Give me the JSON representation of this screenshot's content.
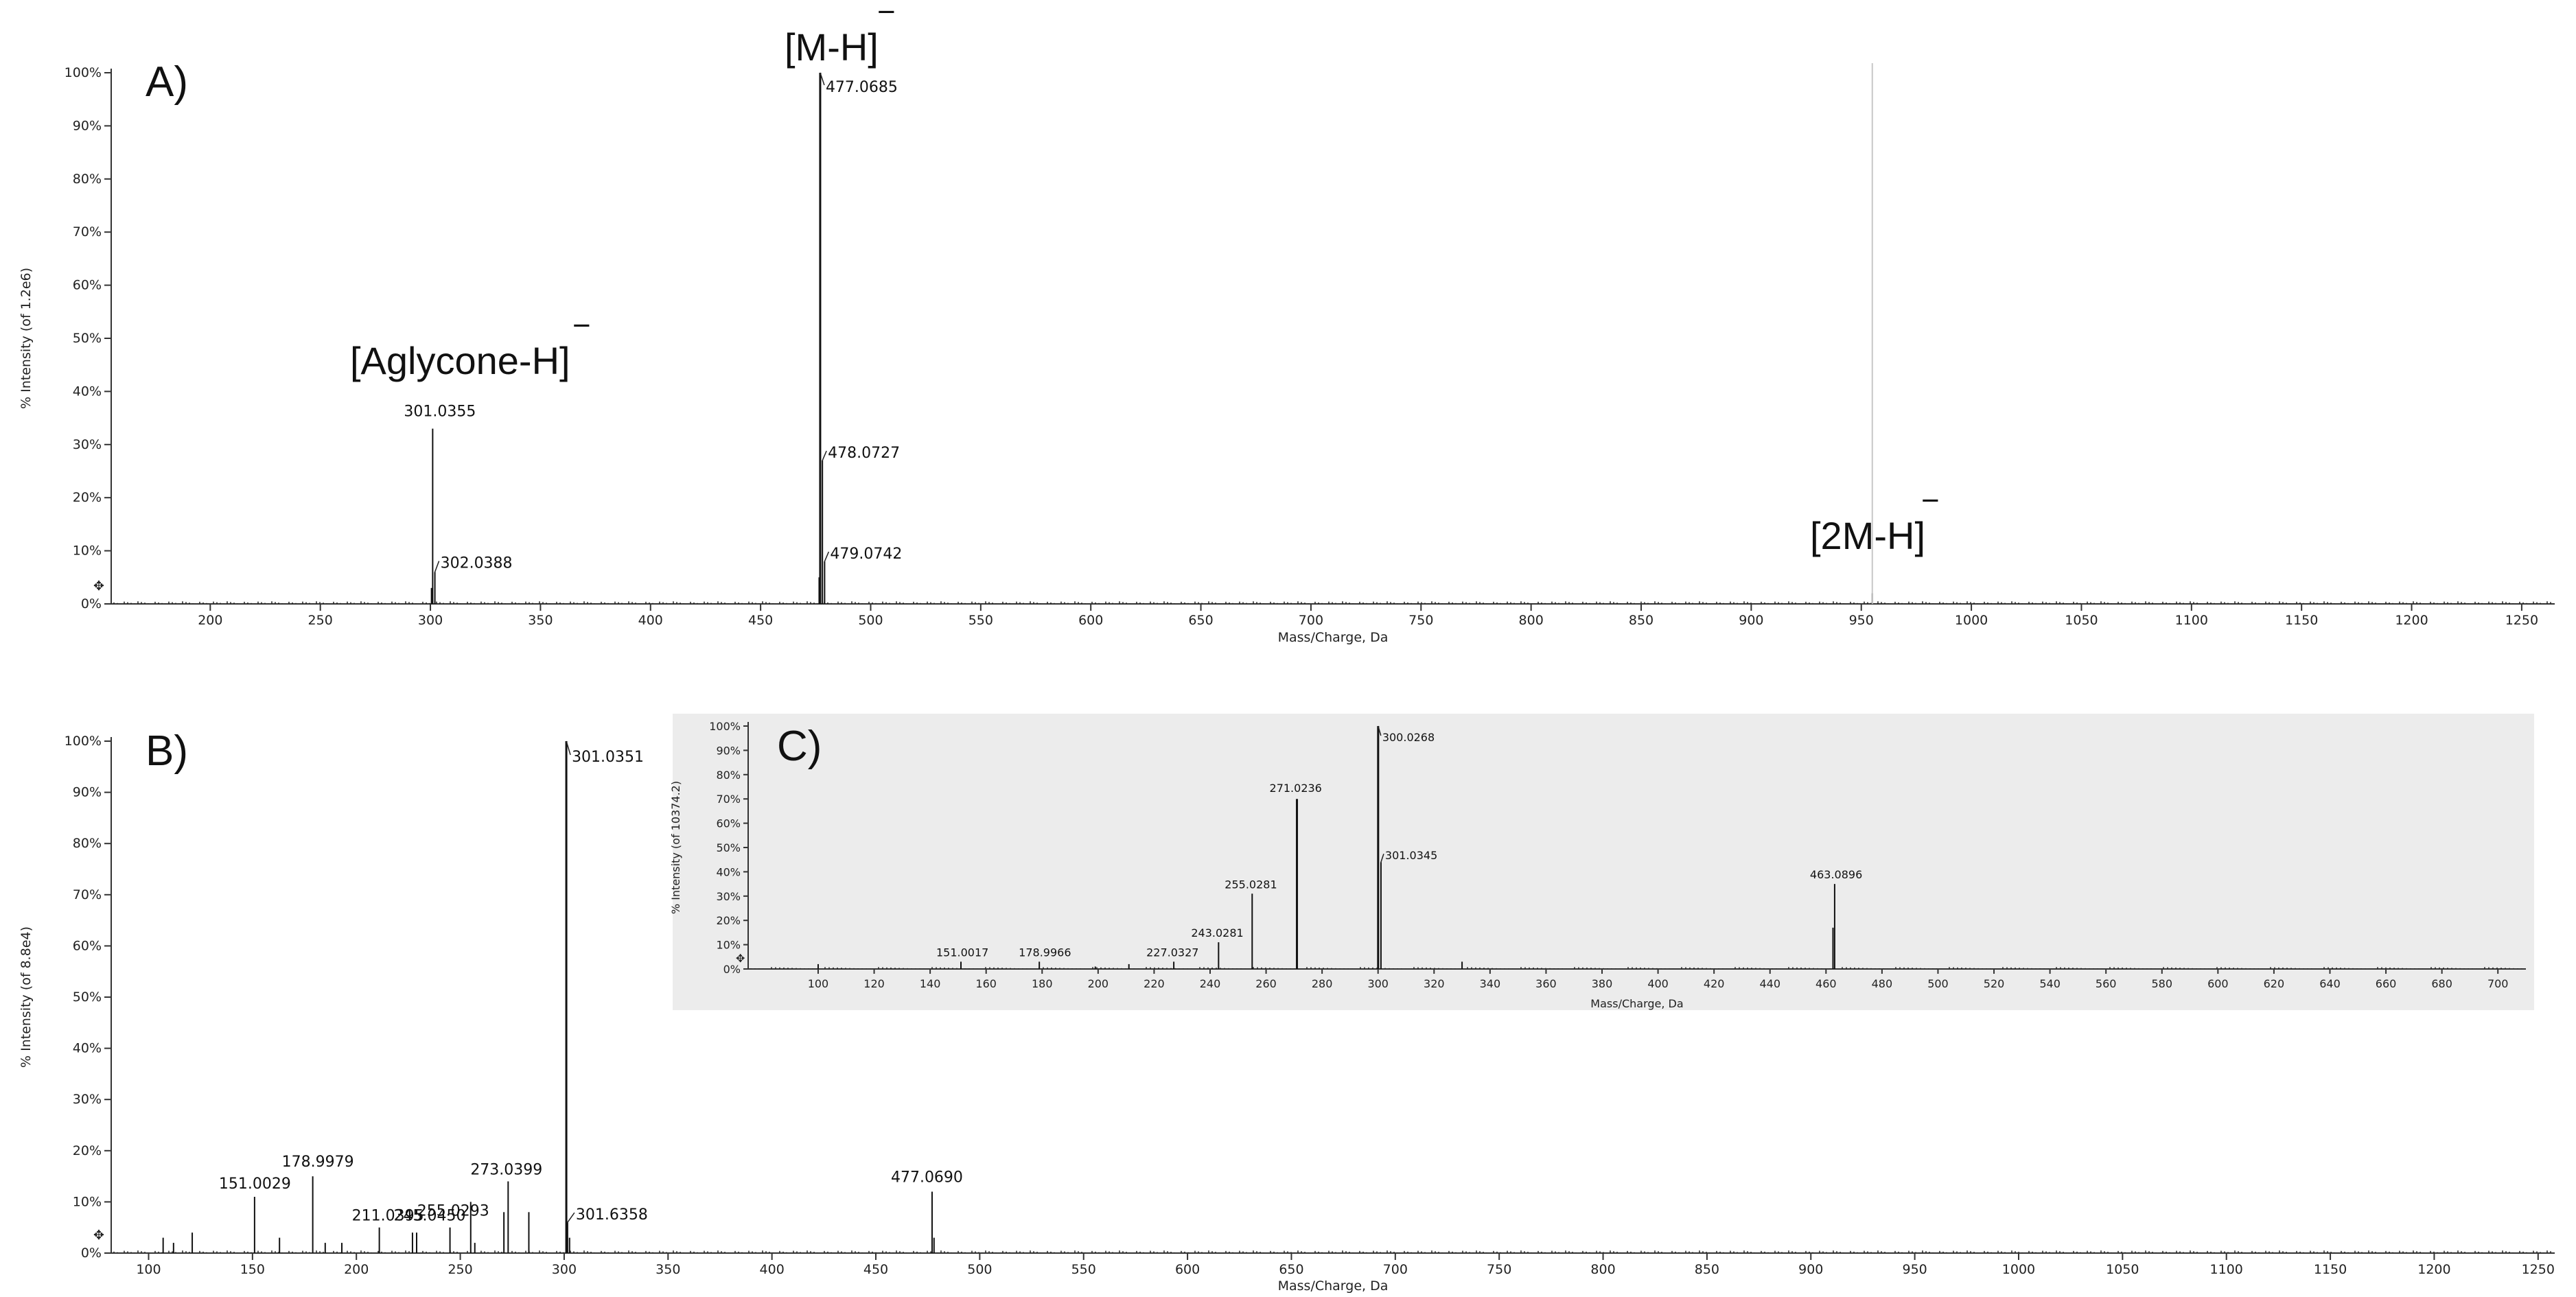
{
  "chart_data": [
    {
      "type": "spectrum",
      "panel_label": "A)",
      "xlabel": "Mass/Charge, Da",
      "ylabel": "% Intensity (of 1.2e6)",
      "xlim": [
        155,
        1265
      ],
      "ylim": [
        0,
        100
      ],
      "xticks": [
        200,
        250,
        300,
        350,
        400,
        450,
        500,
        550,
        600,
        650,
        700,
        750,
        800,
        850,
        900,
        950,
        1000,
        1050,
        1100,
        1150,
        1200,
        1250
      ],
      "yticks": [
        "0%",
        "10%",
        "20%",
        "30%",
        "40%",
        "50%",
        "60%",
        "70%",
        "80%",
        "90%",
        "100%"
      ],
      "peaks": [
        {
          "mz": 300.5,
          "intensity": 3,
          "label": ""
        },
        {
          "mz": 301.0355,
          "intensity": 33,
          "label": "301.0355"
        },
        {
          "mz": 302.0388,
          "intensity": 6,
          "label": "302.0388"
        },
        {
          "mz": 476.6,
          "intensity": 5,
          "label": ""
        },
        {
          "mz": 477.0685,
          "intensity": 100,
          "label": "477.0685"
        },
        {
          "mz": 478.0727,
          "intensity": 27,
          "label": "478.0727"
        },
        {
          "mz": 479.0742,
          "intensity": 8,
          "label": "479.0742"
        },
        {
          "mz": 955.0,
          "intensity": 2,
          "label": ""
        }
      ],
      "ion_labels": [
        {
          "text": "[Aglycone-H]",
          "superscript": "‾",
          "mz": 301
        },
        {
          "text": "[M-H]",
          "superscript": "‾",
          "mz": 477
        },
        {
          "text": "[2M-H]",
          "superscript": "‾",
          "mz": 955
        }
      ]
    },
    {
      "type": "spectrum",
      "panel_label": "B)",
      "xlabel": "Mass/Charge, Da",
      "ylabel": "% Intensity (of 8.8e4)",
      "xlim": [
        82,
        1258
      ],
      "ylim": [
        0,
        100
      ],
      "xticks": [
        100,
        150,
        200,
        250,
        300,
        350,
        400,
        450,
        500,
        550,
        600,
        650,
        700,
        750,
        800,
        850,
        900,
        950,
        1000,
        1050,
        1100,
        1150,
        1200,
        1250
      ],
      "yticks": [
        "0%",
        "10%",
        "20%",
        "30%",
        "40%",
        "50%",
        "60%",
        "70%",
        "80%",
        "90%",
        "100%"
      ],
      "peaks": [
        {
          "mz": 107,
          "intensity": 3,
          "label": ""
        },
        {
          "mz": 112,
          "intensity": 2,
          "label": ""
        },
        {
          "mz": 121,
          "intensity": 4,
          "label": ""
        },
        {
          "mz": 151.0029,
          "intensity": 11,
          "label": "151.0029"
        },
        {
          "mz": 163,
          "intensity": 3,
          "label": ""
        },
        {
          "mz": 178.9979,
          "intensity": 15,
          "label": "178.9979"
        },
        {
          "mz": 185,
          "intensity": 2,
          "label": ""
        },
        {
          "mz": 193,
          "intensity": 2,
          "label": ""
        },
        {
          "mz": 211.0395,
          "intensity": 5,
          "label": "211.0395"
        },
        {
          "mz": 227,
          "intensity": 4,
          "label": ""
        },
        {
          "mz": 229,
          "intensity": 4,
          "label": ""
        },
        {
          "mz": 245.045,
          "intensity": 5,
          "label": "245.0450"
        },
        {
          "mz": 255.0293,
          "intensity": 10,
          "label": "255.0293"
        },
        {
          "mz": 257,
          "intensity": 2,
          "label": ""
        },
        {
          "mz": 271,
          "intensity": 8,
          "label": ""
        },
        {
          "mz": 273.0399,
          "intensity": 14,
          "label": "273.0399"
        },
        {
          "mz": 283,
          "intensity": 8,
          "label": ""
        },
        {
          "mz": 301.0351,
          "intensity": 100,
          "label": "301.0351"
        },
        {
          "mz": 301.6358,
          "intensity": 6,
          "label": "301.6358"
        },
        {
          "mz": 302.6,
          "intensity": 3,
          "label": ""
        },
        {
          "mz": 477.069,
          "intensity": 12,
          "label": "477.0690"
        },
        {
          "mz": 478,
          "intensity": 3,
          "label": ""
        }
      ]
    },
    {
      "type": "spectrum",
      "panel_label": "C)",
      "xlabel": "Mass/Charge, Da",
      "ylabel": "% Intensity (of 10374.2)",
      "xlim": [
        75,
        710
      ],
      "ylim": [
        0,
        100
      ],
      "xticks": [
        100,
        120,
        140,
        160,
        180,
        200,
        220,
        240,
        260,
        280,
        300,
        320,
        340,
        360,
        380,
        400,
        420,
        440,
        460,
        480,
        500,
        520,
        540,
        560,
        580,
        600,
        620,
        640,
        660,
        680,
        700
      ],
      "yticks": [
        "0%",
        "10%",
        "20%",
        "30%",
        "40%",
        "50%",
        "60%",
        "70%",
        "80%",
        "90%",
        "100%"
      ],
      "peaks": [
        {
          "mz": 100,
          "intensity": 2,
          "label": ""
        },
        {
          "mz": 151.0017,
          "intensity": 3,
          "label": "151.0017"
        },
        {
          "mz": 178.9966,
          "intensity": 3,
          "label": "178.9966"
        },
        {
          "mz": 199,
          "intensity": 1,
          "label": ""
        },
        {
          "mz": 211,
          "intensity": 2,
          "label": ""
        },
        {
          "mz": 227.0327,
          "intensity": 3,
          "label": "227.0327"
        },
        {
          "mz": 243.0281,
          "intensity": 11,
          "label": "243.0281"
        },
        {
          "mz": 255.0281,
          "intensity": 31,
          "label": "255.0281"
        },
        {
          "mz": 271.0236,
          "intensity": 70,
          "label": "271.0236"
        },
        {
          "mz": 300.0268,
          "intensity": 100,
          "label": "300.0268"
        },
        {
          "mz": 301.0345,
          "intensity": 44,
          "label": "301.0345"
        },
        {
          "mz": 330,
          "intensity": 3,
          "label": ""
        },
        {
          "mz": 463.0896,
          "intensity": 35,
          "label": "463.0896"
        },
        {
          "mz": 462.5,
          "intensity": 17,
          "label": ""
        }
      ]
    }
  ]
}
